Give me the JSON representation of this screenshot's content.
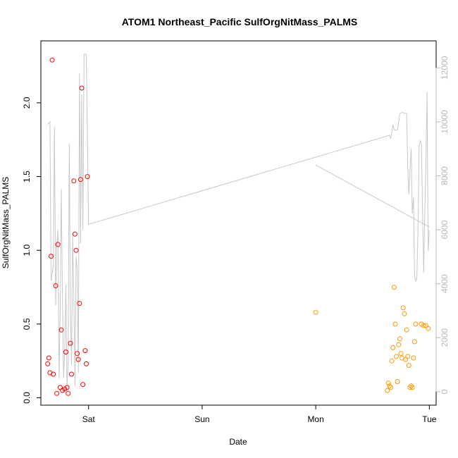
{
  "chart_data": {
    "type": "scatter",
    "title": "ATOM1 Northeast_Pacific SulfOrgNitMass_PALMS",
    "xlabel": "Date",
    "ylabel": "SulfOrgNitMass_PALMS",
    "xlim_days": [
      -0.42,
      3.06
    ],
    "ylim": [
      -0.05,
      2.42
    ],
    "y2lim": [
      -500,
      13000
    ],
    "x_ticks": [
      {
        "pos": 0,
        "label": "Sat"
      },
      {
        "pos": 1,
        "label": "Sun"
      },
      {
        "pos": 2,
        "label": "Mon"
      },
      {
        "pos": 3,
        "label": "Tue"
      }
    ],
    "y_ticks": [
      0.0,
      0.5,
      1.0,
      1.5,
      2.0
    ],
    "y_tick_labels": [
      "0.0",
      "0.5",
      "1.0",
      "1.5",
      "2.0"
    ],
    "y2_ticks": [
      0,
      2000,
      4000,
      6000,
      8000,
      10000,
      12000
    ],
    "y2_tick_labels": [
      "0",
      "2000",
      "4000",
      "6000",
      "8000",
      "10000",
      "12000"
    ],
    "colors": {
      "series1": "#ff0000",
      "series2": "#ff9900",
      "altitude": "#c8c8c8"
    },
    "series": [
      {
        "color": "#ff0000",
        "points": [
          [
            -0.36,
            0.23
          ],
          [
            -0.35,
            0.27
          ],
          [
            -0.34,
            0.17
          ],
          [
            -0.33,
            0.96
          ],
          [
            -0.32,
            2.29
          ],
          [
            -0.31,
            0.16
          ],
          [
            -0.29,
            0.76
          ],
          [
            -0.28,
            0.03
          ],
          [
            -0.27,
            1.04
          ],
          [
            -0.25,
            0.07
          ],
          [
            -0.24,
            0.46
          ],
          [
            -0.23,
            0.05
          ],
          [
            -0.21,
            0.06
          ],
          [
            -0.2,
            0.31
          ],
          [
            -0.19,
            0.07
          ],
          [
            -0.18,
            0.03
          ],
          [
            -0.16,
            0.37
          ],
          [
            -0.15,
            0.16
          ],
          [
            -0.13,
            1.47
          ],
          [
            -0.12,
            1.11
          ],
          [
            -0.11,
            1.0
          ],
          [
            -0.1,
            0.3
          ],
          [
            -0.09,
            0.26
          ],
          [
            -0.08,
            0.64
          ],
          [
            -0.07,
            1.48
          ],
          [
            -0.06,
            2.1
          ],
          [
            -0.05,
            0.09
          ],
          [
            -0.03,
            0.32
          ],
          [
            -0.02,
            0.23
          ],
          [
            -0.01,
            1.5
          ]
        ]
      },
      {
        "color": "#ff9900",
        "points": [
          [
            2.0,
            0.58
          ],
          [
            2.63,
            0.05
          ],
          [
            2.64,
            0.1
          ],
          [
            2.65,
            0.08
          ],
          [
            2.66,
            0.07
          ],
          [
            2.67,
            0.25
          ],
          [
            2.68,
            0.34
          ],
          [
            2.69,
            0.75
          ],
          [
            2.7,
            0.5
          ],
          [
            2.71,
            0.28
          ],
          [
            2.72,
            0.11
          ],
          [
            2.73,
            0.36
          ],
          [
            2.74,
            0.4
          ],
          [
            2.75,
            0.3
          ],
          [
            2.76,
            0.27
          ],
          [
            2.77,
            0.61
          ],
          [
            2.78,
            0.57
          ],
          [
            2.79,
            0.26
          ],
          [
            2.8,
            0.46
          ],
          [
            2.81,
            0.28
          ],
          [
            2.82,
            0.22
          ],
          [
            2.83,
            0.07
          ],
          [
            2.84,
            0.08
          ],
          [
            2.85,
            0.07
          ],
          [
            2.86,
            0.27
          ],
          [
            2.87,
            0.38
          ],
          [
            2.88,
            0.5
          ],
          [
            2.93,
            0.5
          ],
          [
            2.95,
            0.49
          ],
          [
            2.97,
            0.49
          ],
          [
            2.99,
            0.47
          ]
        ]
      }
    ],
    "altitude_line": [
      [
        -0.36,
        9900
      ],
      [
        -0.34,
        10000
      ],
      [
        -0.33,
        4100
      ],
      [
        -0.31,
        4700
      ],
      [
        -0.3,
        9800
      ],
      [
        -0.29,
        3200
      ],
      [
        -0.28,
        5500
      ],
      [
        -0.27,
        6000
      ],
      [
        -0.26,
        500
      ],
      [
        -0.25,
        3000
      ],
      [
        -0.24,
        7500
      ],
      [
        -0.23,
        3500
      ],
      [
        -0.22,
        500
      ],
      [
        -0.21,
        1500
      ],
      [
        -0.2,
        4000
      ],
      [
        -0.19,
        200
      ],
      [
        -0.18,
        1000
      ],
      [
        -0.17,
        9200
      ],
      [
        -0.16,
        3000
      ],
      [
        -0.15,
        1000
      ],
      [
        -0.14,
        5800
      ],
      [
        -0.13,
        3500
      ],
      [
        -0.12,
        200
      ],
      [
        -0.11,
        5000
      ],
      [
        -0.1,
        4500
      ],
      [
        -0.09,
        700
      ],
      [
        -0.08,
        11800
      ],
      [
        -0.07,
        5500
      ],
      [
        -0.06,
        11000
      ],
      [
        -0.05,
        6000
      ],
      [
        -0.04,
        12500
      ],
      [
        -0.02,
        12500
      ],
      [
        0.0,
        6200
      ],
      [
        2.65,
        9500
      ],
      [
        2.66,
        9400
      ],
      [
        2.67,
        9600
      ],
      [
        2.68,
        9900
      ],
      [
        2.69,
        9700
      ],
      [
        2.72,
        9700
      ],
      [
        2.74,
        10300
      ],
      [
        2.76,
        10350
      ],
      [
        2.8,
        10300
      ],
      [
        2.81,
        8300
      ],
      [
        2.82,
        7300
      ],
      [
        2.83,
        8200
      ],
      [
        2.84,
        9000
      ],
      [
        2.85,
        6600
      ],
      [
        2.86,
        7200
      ],
      [
        2.87,
        4300
      ],
      [
        2.88,
        4100
      ],
      [
        2.89,
        4200
      ],
      [
        2.9,
        6000
      ],
      [
        2.91,
        9100
      ],
      [
        2.92,
        9300
      ],
      [
        2.93,
        9200
      ],
      [
        2.95,
        4400
      ],
      [
        2.96,
        6700
      ],
      [
        2.97,
        8500
      ],
      [
        2.98,
        11100
      ],
      [
        2.99,
        5200
      ],
      [
        3.0,
        6000
      ]
    ],
    "altitude_line_2": [
      [
        2.0,
        8400
      ],
      [
        3.0,
        6100
      ]
    ]
  }
}
